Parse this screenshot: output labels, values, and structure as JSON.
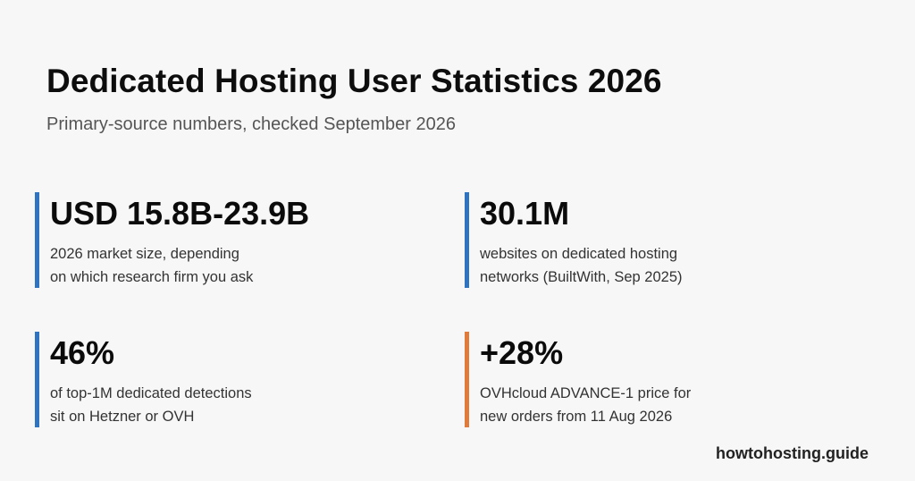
{
  "header": {
    "title": "Dedicated Hosting User Statistics 2026",
    "subtitle": "Primary-source numbers, checked September 2026"
  },
  "stats": [
    {
      "value": "USD 15.8B-23.9B",
      "desc_lines": [
        "2026 market size, depending",
        "on which research firm you ask"
      ],
      "accent": "#2f74c0"
    },
    {
      "value": "30.1M",
      "desc_lines": [
        "websites on dedicated hosting",
        "networks (BuiltWith, Sep 2025)"
      ],
      "accent": "#2f74c0"
    },
    {
      "value": "46%",
      "desc_lines": [
        "of top-1M dedicated detections",
        "sit on Hetzner or OVH"
      ],
      "accent": "#2f74c0"
    },
    {
      "value": "+28%",
      "desc_lines": [
        "OVHcloud ADVANCE-1 price for",
        "new orders from 11 Aug 2026"
      ],
      "accent": "#e07b3c"
    }
  ],
  "footer": {
    "brand": "howtohosting.guide"
  }
}
